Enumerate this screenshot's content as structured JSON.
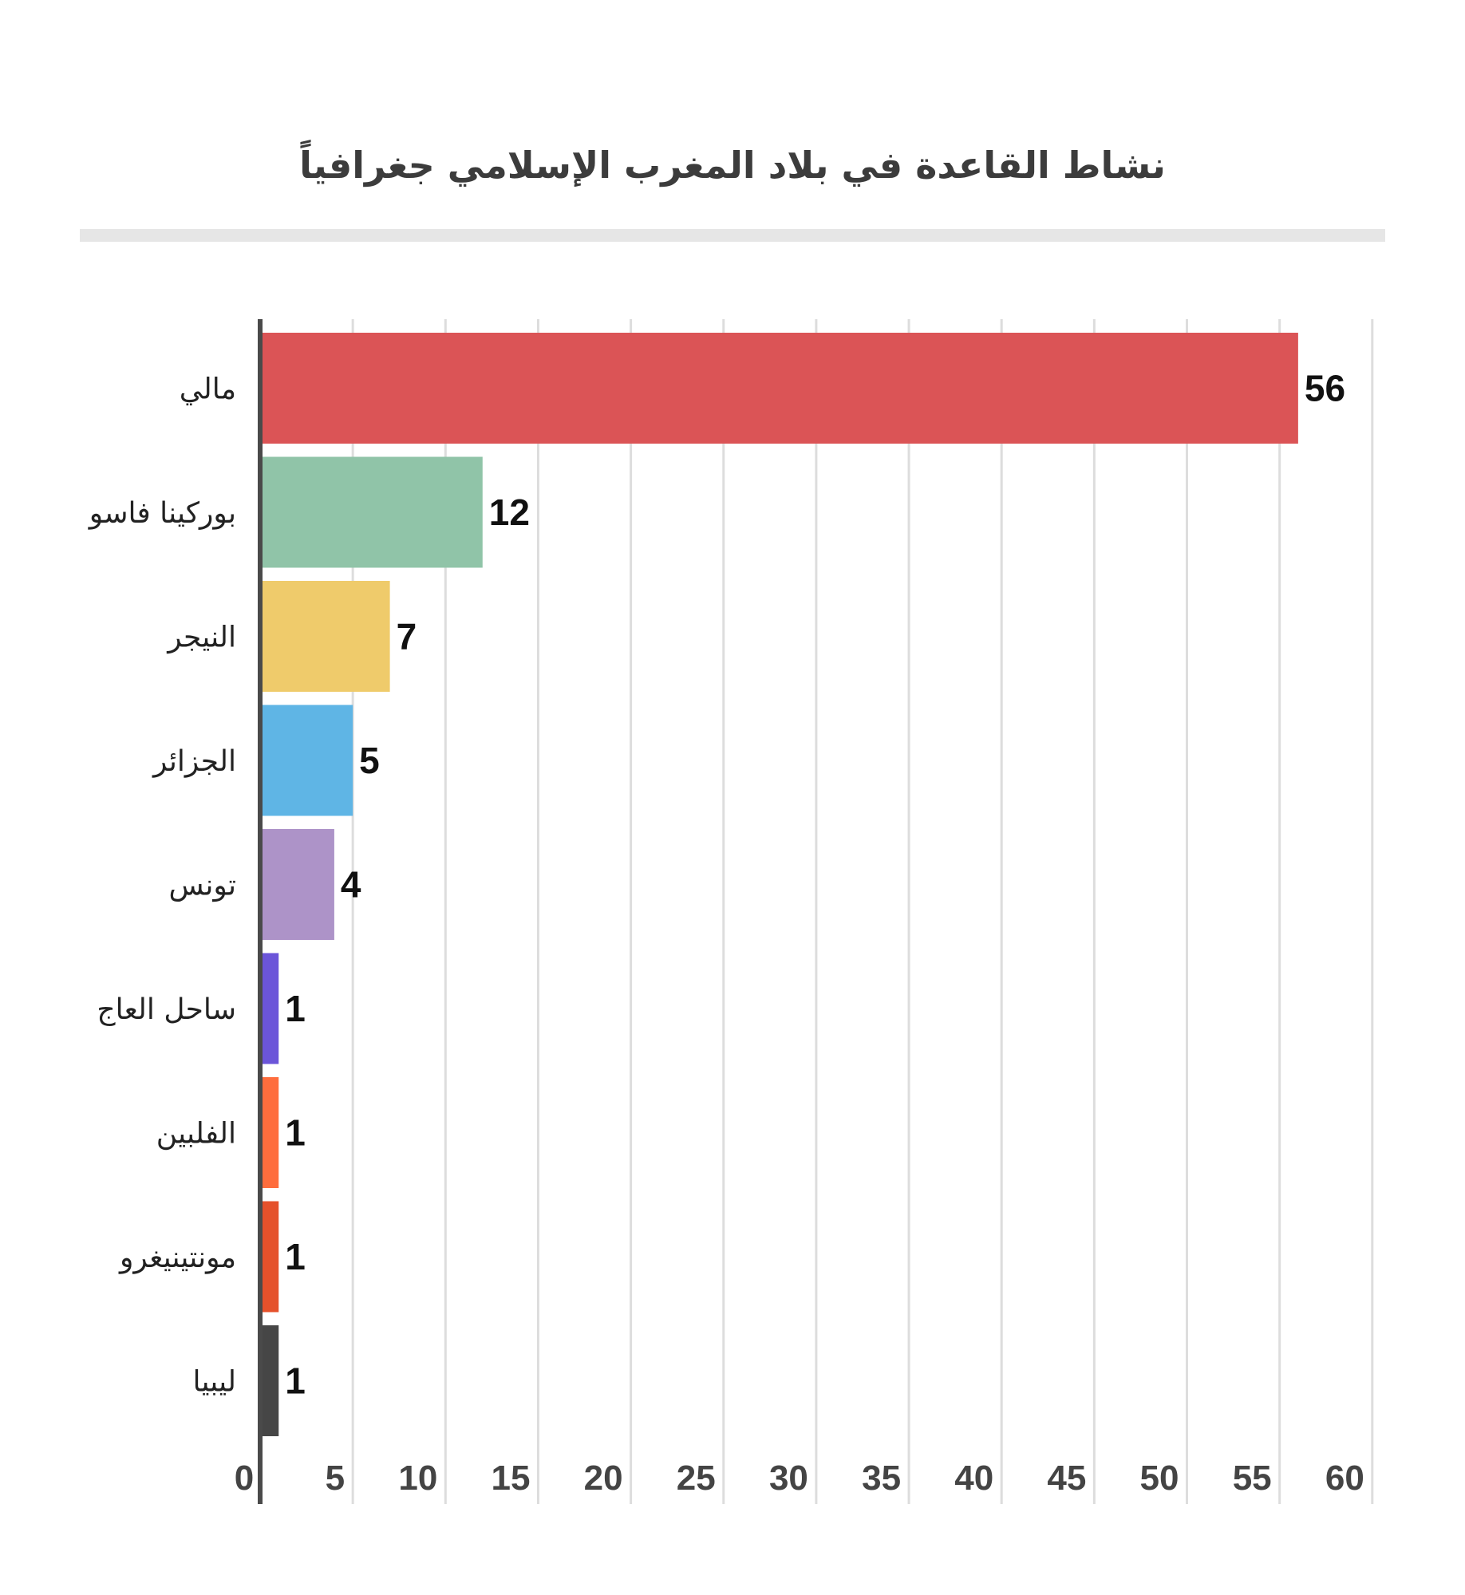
{
  "chart_data": {
    "type": "bar",
    "orientation": "horizontal",
    "title": "نشاط القاعدة في بلاد المغرب الإسلامي  جغرافياً",
    "xlabel": "",
    "ylabel": "",
    "xlim": [
      0,
      60
    ],
    "ticks": [
      0,
      5,
      10,
      15,
      20,
      25,
      30,
      35,
      40,
      45,
      50,
      55,
      60
    ],
    "grid": true,
    "legend": "none",
    "categories": [
      "مالي",
      "بوركينا فاسو",
      "النيجر",
      "الجزائر",
      "تونس",
      "ساحل العاج",
      "الفلبين",
      "مونتينيغرو",
      "ليبيا"
    ],
    "values": [
      56,
      12,
      7,
      5,
      4,
      1,
      1,
      1,
      1
    ],
    "colors": [
      "#db5456",
      "#90c4a8",
      "#efcb6b",
      "#5fb5e5",
      "#ad93c8",
      "#6b55d9",
      "#ff6d3d",
      "#e5512b",
      "#464646"
    ]
  }
}
